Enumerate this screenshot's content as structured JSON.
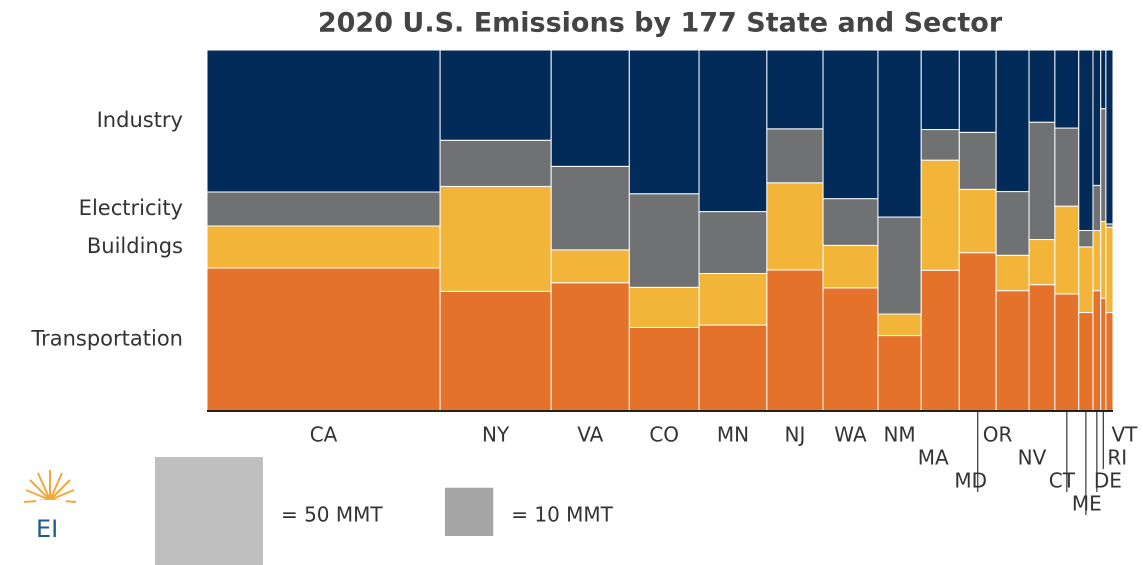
{
  "chart_data": {
    "type": "marimekko",
    "title": "2020 U.S. Emissions by 177 State and Sector",
    "categories": [
      "CA",
      "NY",
      "VA",
      "CO",
      "MN",
      "NJ",
      "WA",
      "NM",
      "MA",
      "MD",
      "OR",
      "NV",
      "CT",
      "ME",
      "DE",
      "RI",
      "VT"
    ],
    "series": [
      {
        "name": "Transportation",
        "color": "#e5722a",
        "values": [
          143,
          57,
          43,
          25,
          25,
          34,
          29,
          14,
          23,
          25,
          17,
          14,
          12,
          6,
          4,
          2.5,
          3
        ]
      },
      {
        "name": "Buildings",
        "color": "#f2b53a",
        "values": [
          42,
          50,
          11,
          12,
          15,
          21,
          10,
          4,
          18,
          10,
          5,
          5,
          9,
          4,
          2,
          1.7,
          2.6
        ]
      },
      {
        "name": "Electricity",
        "color": "#6f7173",
        "values": [
          34,
          22,
          28,
          28,
          18,
          13,
          11,
          18,
          5,
          9,
          9,
          13,
          8,
          1,
          1.5,
          2.5,
          0.1
        ]
      },
      {
        "name": "Industry",
        "color": "#032b5a",
        "values": [
          142,
          43,
          39,
          43,
          47,
          19,
          35,
          31,
          13,
          13,
          20,
          8,
          8,
          11,
          4.5,
          1.3,
          5.3
        ]
      }
    ],
    "legend_squares": [
      {
        "value": 50,
        "label": "= 50 MMT"
      },
      {
        "value": 10,
        "label": "= 10 MMT"
      }
    ],
    "logo": "EI"
  }
}
